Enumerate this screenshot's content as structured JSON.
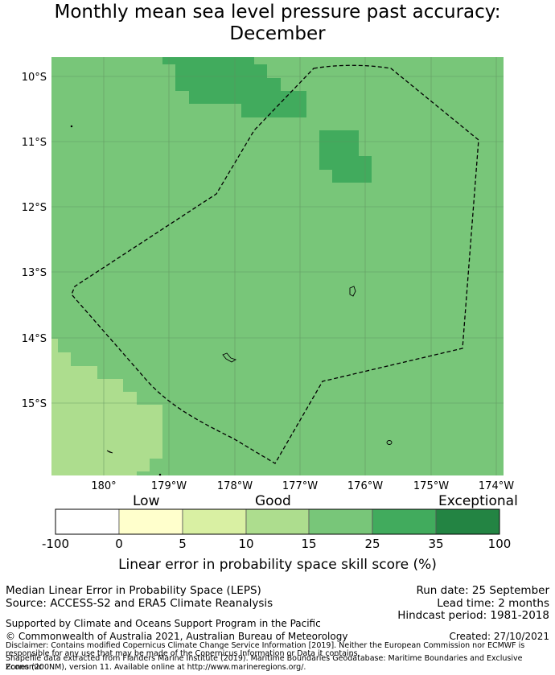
{
  "title": {
    "line1": "Monthly mean sea level pressure past accuracy:",
    "line2": "December"
  },
  "map": {
    "lat_labels": [
      "10°S",
      "11°S",
      "12°S",
      "13°S",
      "14°S",
      "15°S"
    ],
    "lon_labels": [
      "180°",
      "179°W",
      "178°W",
      "177°W",
      "176°W",
      "175°W",
      "174°W"
    ],
    "colors": {
      "ocean_25_35": "#78c679",
      "patch_35_100": "#41ab5d",
      "patch_15_25": "#addd8e",
      "gridline": "#5f8f5f"
    }
  },
  "colorbar": {
    "category_labels": [
      "Low",
      "Good",
      "Exceptional"
    ],
    "ticks": [
      "-100",
      "0",
      "5",
      "10",
      "15",
      "25",
      "35",
      "100"
    ],
    "colors": [
      "#ffffff",
      "#ffffcc",
      "#d9f0a3",
      "#addd8e",
      "#78c679",
      "#41ab5d",
      "#238443"
    ],
    "label": "Linear error in probability space skill score (%)"
  },
  "footer": {
    "method": "Median Linear Error in Probability Space (LEPS)",
    "source": "Source: ACCESS-S2 and ERA5 Climate Reanalysis",
    "run_date": "Run date: 25 September",
    "lead_time": "Lead time: 2 months",
    "hindcast": "Hindcast period: 1981-2018",
    "support": "Supported by Climate and Oceans Support Program in the Pacific",
    "copyright": "© Commonwealth of Australia 2021, Australian Bureau of Meteorology",
    "created": "Created: 27/10/2021",
    "disclaimer1": "Disclaimer: Contains modified Copernicus Climate Change Service Information [2019]. Neither the European Commission nor ECMWF is",
    "disclaimer2": "responsible for any use that may be made of the Copernicus Information or Data it contains.",
    "shapefile1": "Shapefile data extracted from Flanders Marine Institute (2019). Maritime Boundaries Geodatabase: Maritime Boundaries and Exclusive Economic",
    "shapefile2": "Zones (200NM), version 11. Available online at http://www.marineregions.org/."
  }
}
